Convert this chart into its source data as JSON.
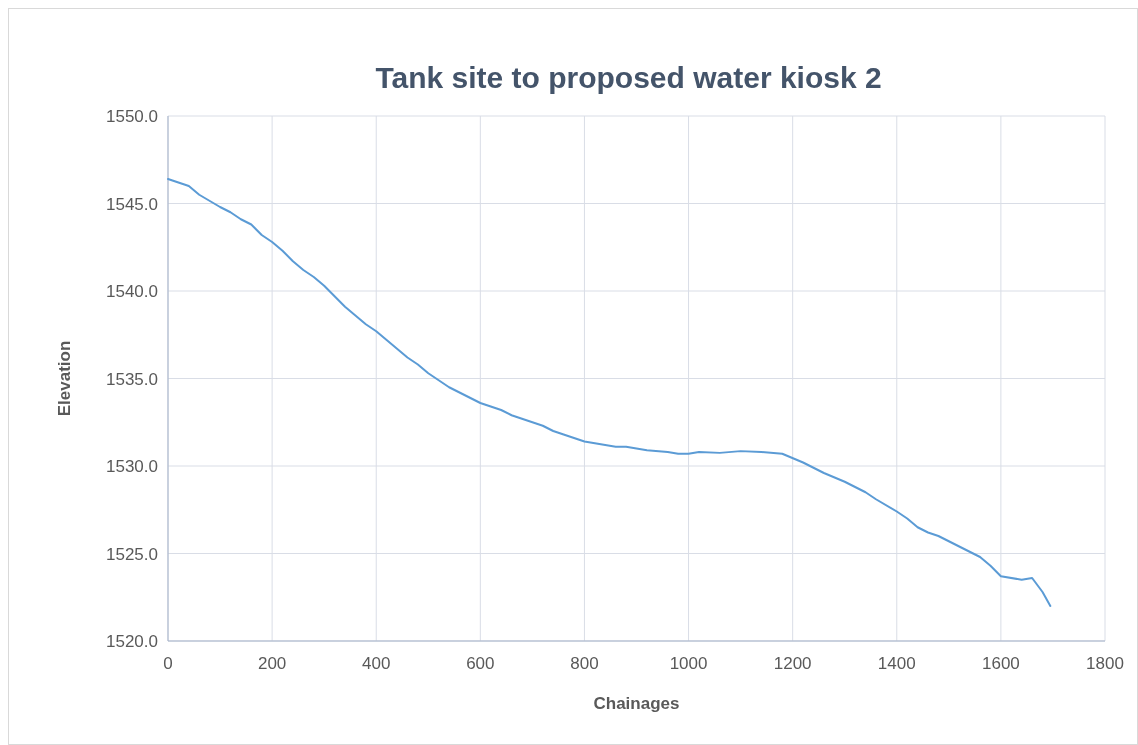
{
  "chart_data": {
    "type": "line",
    "title": "Tank site to proposed water kiosk 2",
    "xlabel": "Chainages",
    "ylabel": "Elevation",
    "xlim": [
      0,
      1800
    ],
    "xticks": [
      0,
      200,
      400,
      600,
      800,
      1000,
      1200,
      1400,
      1600,
      1800
    ],
    "ylim": [
      1520,
      1550
    ],
    "yticks": [
      {
        "value": 1520,
        "label": "1520.0"
      },
      {
        "value": 1525,
        "label": "1525.0"
      },
      {
        "value": 1530,
        "label": "1530.0"
      },
      {
        "value": 1535,
        "label": "1535.0"
      },
      {
        "value": 1540,
        "label": "1540.0"
      },
      {
        "value": 1545,
        "label": "1545.0"
      },
      {
        "value": 1550,
        "label": "1550.0"
      }
    ],
    "grid": true,
    "marker": "none",
    "line_style": "solid",
    "series": [
      {
        "color": "#5b9bd5",
        "x": [
          0,
          40,
          60,
          100,
          120,
          140,
          160,
          180,
          200,
          220,
          240,
          260,
          280,
          300,
          320,
          340,
          360,
          380,
          400,
          420,
          440,
          460,
          480,
          500,
          520,
          540,
          560,
          580,
          600,
          620,
          640,
          660,
          680,
          700,
          720,
          740,
          760,
          780,
          800,
          820,
          840,
          860,
          880,
          900,
          920,
          960,
          980,
          1000,
          1020,
          1060,
          1100,
          1140,
          1180,
          1220,
          1260,
          1300,
          1340,
          1360,
          1400,
          1420,
          1440,
          1460,
          1480,
          1500,
          1540,
          1560,
          1580,
          1600,
          1640,
          1660,
          1680,
          1695
        ],
        "values": [
          1546.4,
          1546.0,
          1545.5,
          1544.8,
          1544.5,
          1544.1,
          1543.8,
          1543.2,
          1542.8,
          1542.3,
          1541.7,
          1541.2,
          1540.8,
          1540.3,
          1539.7,
          1539.1,
          1538.6,
          1538.1,
          1537.7,
          1537.2,
          1536.7,
          1536.2,
          1535.8,
          1535.3,
          1534.9,
          1534.5,
          1534.2,
          1533.9,
          1533.6,
          1533.4,
          1533.2,
          1532.9,
          1532.7,
          1532.5,
          1532.3,
          1532.0,
          1531.8,
          1531.6,
          1531.4,
          1531.3,
          1531.2,
          1531.1,
          1531.1,
          1531.0,
          1530.9,
          1530.8,
          1530.7,
          1530.7,
          1530.8,
          1530.75,
          1530.85,
          1530.8,
          1530.7,
          1530.2,
          1529.6,
          1529.1,
          1528.5,
          1528.1,
          1527.4,
          1527.0,
          1526.5,
          1526.2,
          1526.0,
          1525.7,
          1525.1,
          1524.8,
          1524.3,
          1523.7,
          1523.5,
          1523.6,
          1522.8,
          1522.0
        ]
      }
    ]
  }
}
